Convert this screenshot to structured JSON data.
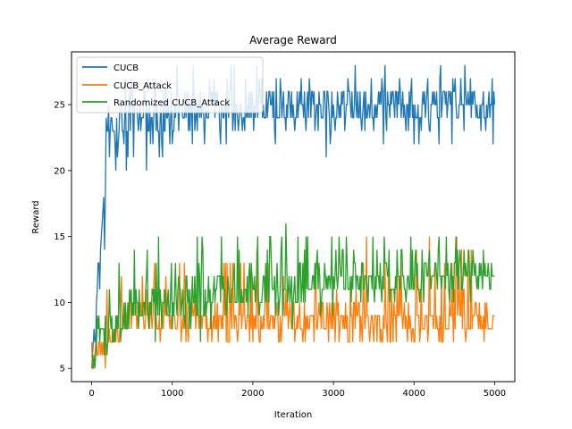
{
  "chart_data": {
    "type": "line",
    "title": "Average Reward",
    "xlabel": "Iteration",
    "ylabel": "Reward",
    "xlim": [
      -250,
      5250
    ],
    "ylim": [
      4.0,
      29.0
    ],
    "x_ticks": [
      0,
      1000,
      2000,
      3000,
      4000,
      5000
    ],
    "y_ticks": [
      5,
      10,
      15,
      20,
      25
    ],
    "grid": false,
    "legend_position": "top-left",
    "series": [
      {
        "name": "CUCB",
        "color": "#1f77b4",
        "x": [
          0,
          100,
          150,
          200,
          300,
          500,
          1000,
          1500,
          2000,
          2500,
          3000,
          3500,
          4000,
          4500,
          5000
        ],
        "y": [
          6,
          13,
          19,
          23,
          24,
          24,
          24,
          25,
          25,
          25,
          25,
          25,
          25,
          25,
          25
        ],
        "band_low": [
          5,
          7,
          10,
          19,
          20,
          19,
          21,
          22,
          22,
          22,
          21,
          22,
          21,
          22,
          21
        ],
        "band_high": [
          7,
          17,
          25,
          27,
          27,
          28,
          28,
          28,
          28,
          28,
          28,
          28,
          28,
          28,
          28
        ]
      },
      {
        "name": "CUCB_Attack",
        "color": "#ff7f0e",
        "x": [
          0,
          100,
          200,
          300,
          500,
          1000,
          1500,
          2000,
          2500,
          3000,
          3500,
          4000,
          4500,
          5000
        ],
        "y": [
          5.5,
          6,
          6.5,
          8,
          9,
          9,
          8.5,
          8.5,
          8.5,
          8.5,
          8.5,
          8.5,
          8.5,
          8.5
        ],
        "band_low": [
          5,
          5,
          5,
          7,
          7,
          7,
          7,
          7,
          7,
          7,
          7,
          7,
          7,
          7
        ],
        "band_high": [
          7,
          9,
          11,
          12,
          13,
          14,
          13,
          14,
          14,
          15,
          15,
          15,
          16,
          13
        ]
      },
      {
        "name": "Randomized CUCB_Attack",
        "color": "#2ca02c",
        "x": [
          0,
          100,
          200,
          300,
          500,
          1000,
          1500,
          2000,
          2500,
          3000,
          3500,
          4000,
          4500,
          5000
        ],
        "y": [
          5.5,
          7,
          7.5,
          9,
          9.5,
          10,
          10.5,
          11,
          11,
          11.5,
          11.5,
          12,
          12,
          12
        ],
        "band_low": [
          5,
          5,
          5,
          7,
          5,
          7,
          6,
          9,
          8,
          8,
          9,
          9,
          9,
          10
        ],
        "band_high": [
          7,
          11,
          12,
          13,
          14,
          17,
          15,
          16,
          17,
          16,
          16,
          16,
          16,
          15
        ]
      }
    ]
  }
}
